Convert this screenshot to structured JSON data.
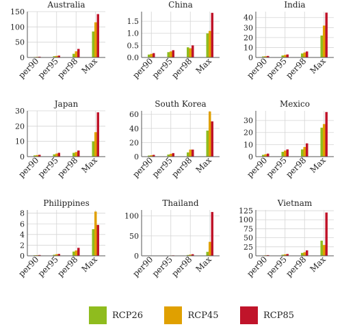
{
  "chart_data": [
    {
      "type": "bar",
      "title": "Australia",
      "categories": [
        "per90",
        "per95",
        "per98",
        "Max"
      ],
      "ylim": [
        0,
        150
      ],
      "yticks": [
        0,
        50,
        100,
        150
      ],
      "series": [
        {
          "name": "RCP26",
          "values": [
            1.5,
            4,
            12,
            85
          ]
        },
        {
          "name": "RCP45",
          "values": [
            2,
            5,
            20,
            115
          ]
        },
        {
          "name": "RCP85",
          "values": [
            2.5,
            6,
            28,
            142
          ]
        }
      ]
    },
    {
      "type": "bar",
      "title": "China",
      "categories": [
        "per90",
        "per95",
        "per98",
        "Max"
      ],
      "ylim": [
        0,
        1.9
      ],
      "yticks": [
        0.0,
        0.5,
        1.0,
        1.5
      ],
      "series": [
        {
          "name": "RCP26",
          "values": [
            0.12,
            0.22,
            0.42,
            1.0
          ]
        },
        {
          "name": "RCP45",
          "values": [
            0.15,
            0.25,
            0.38,
            1.1
          ]
        },
        {
          "name": "RCP85",
          "values": [
            0.18,
            0.3,
            0.5,
            1.85
          ]
        }
      ]
    },
    {
      "type": "bar",
      "title": "India",
      "categories": [
        "per90",
        "per95",
        "per98",
        "Max"
      ],
      "ylim": [
        0,
        46
      ],
      "yticks": [
        0,
        10,
        20,
        30,
        40
      ],
      "series": [
        {
          "name": "RCP26",
          "values": [
            1,
            2,
            4,
            22
          ]
        },
        {
          "name": "RCP45",
          "values": [
            1.2,
            2.5,
            5,
            32
          ]
        },
        {
          "name": "RCP85",
          "values": [
            1.5,
            3,
            6,
            45
          ]
        }
      ]
    },
    {
      "type": "bar",
      "title": "Japan",
      "categories": [
        "per90",
        "per95",
        "per98",
        "Max"
      ],
      "ylim": [
        0,
        30
      ],
      "yticks": [
        0,
        10,
        20,
        30
      ],
      "series": [
        {
          "name": "RCP26",
          "values": [
            0.8,
            1.5,
            2.5,
            10
          ]
        },
        {
          "name": "RCP45",
          "values": [
            1,
            2,
            3,
            16
          ]
        },
        {
          "name": "RCP85",
          "values": [
            1.2,
            2.5,
            4,
            29
          ]
        }
      ]
    },
    {
      "type": "bar",
      "title": "South Korea",
      "categories": [
        "per90",
        "per95",
        "per98",
        "Max"
      ],
      "ylim": [
        0,
        65
      ],
      "yticks": [
        0,
        20,
        40,
        60
      ],
      "series": [
        {
          "name": "RCP26",
          "values": [
            1.5,
            3,
            6,
            37
          ]
        },
        {
          "name": "RCP45",
          "values": [
            2,
            4,
            10,
            64
          ]
        },
        {
          "name": "RCP85",
          "values": [
            2.5,
            5,
            10,
            50
          ]
        }
      ]
    },
    {
      "type": "bar",
      "title": "Mexico",
      "categories": [
        "per90",
        "per95",
        "per98",
        "Max"
      ],
      "ylim": [
        0,
        38
      ],
      "yticks": [
        0,
        10,
        20,
        30
      ],
      "series": [
        {
          "name": "RCP26",
          "values": [
            1.5,
            4,
            6,
            24
          ]
        },
        {
          "name": "RCP45",
          "values": [
            2,
            5,
            8,
            27
          ]
        },
        {
          "name": "RCP85",
          "values": [
            2.5,
            6,
            11,
            37
          ]
        }
      ]
    },
    {
      "type": "bar",
      "title": "Philippines",
      "categories": [
        "per90",
        "per95",
        "per98",
        "Max"
      ],
      "ylim": [
        0,
        8.6
      ],
      "yticks": [
        0,
        2,
        4,
        6,
        8
      ],
      "series": [
        {
          "name": "RCP26",
          "values": [
            0.1,
            0.2,
            0.8,
            5
          ]
        },
        {
          "name": "RCP45",
          "values": [
            0.12,
            0.3,
            1.0,
            8.3
          ]
        },
        {
          "name": "RCP85",
          "values": [
            0.15,
            0.35,
            1.5,
            5.8
          ]
        }
      ]
    },
    {
      "type": "bar",
      "title": "Thailand",
      "categories": [
        "per90",
        "per95",
        "per98",
        "Max"
      ],
      "ylim": [
        0,
        115
      ],
      "yticks": [
        0,
        50,
        100
      ],
      "series": [
        {
          "name": "RCP26",
          "values": [
            0.3,
            0.8,
            2,
            10
          ]
        },
        {
          "name": "RCP45",
          "values": [
            0.4,
            1,
            3,
            35
          ]
        },
        {
          "name": "RCP85",
          "values": [
            0.5,
            1.2,
            4,
            110
          ]
        }
      ]
    },
    {
      "type": "bar",
      "title": "Vietnam",
      "categories": [
        "per90",
        "per95",
        "per98",
        "Max"
      ],
      "ylim": [
        0,
        127
      ],
      "yticks": [
        0,
        25,
        50,
        75,
        100,
        125
      ],
      "series": [
        {
          "name": "RCP26",
          "values": [
            1,
            3,
            8,
            42
          ]
        },
        {
          "name": "RCP45",
          "values": [
            1.5,
            4,
            10,
            30
          ]
        },
        {
          "name": "RCP85",
          "values": [
            2,
            5,
            15,
            120
          ]
        }
      ]
    }
  ],
  "legend": {
    "placement": "bottom-center",
    "items": [
      {
        "label": "RCP26",
        "color": "#8fbc1e"
      },
      {
        "label": "RCP45",
        "color": "#e0a000"
      },
      {
        "label": "RCP85",
        "color": "#c0142a"
      }
    ]
  }
}
